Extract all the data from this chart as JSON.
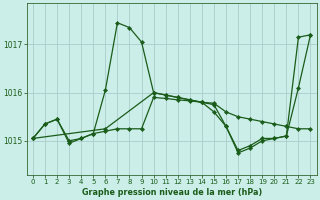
{
  "background_color": "#cceee8",
  "grid_color_major": "#aacccc",
  "grid_color_minor": "#bbdddd",
  "line_color": "#1a5c1a",
  "title": "Graphe pression niveau de la mer (hPa)",
  "xlim": [
    -0.5,
    23.5
  ],
  "ylim": [
    1014.3,
    1017.85
  ],
  "yticks": [
    1015,
    1016,
    1017
  ],
  "xticks": [
    0,
    1,
    2,
    3,
    4,
    5,
    6,
    7,
    8,
    9,
    10,
    11,
    12,
    13,
    14,
    15,
    16,
    17,
    18,
    19,
    20,
    21,
    22,
    23
  ],
  "series": [
    {
      "x": [
        0,
        1,
        2,
        3,
        4,
        5,
        6,
        7,
        8,
        9,
        10,
        11,
        12,
        13,
        14,
        15,
        16,
        17,
        18,
        19,
        20,
        21,
        22,
        23
      ],
      "y": [
        1015.05,
        1015.35,
        1015.45,
        1015.0,
        1015.05,
        1015.15,
        1016.05,
        1017.45,
        1017.35,
        1017.05,
        1016.0,
        1015.95,
        1015.9,
        1015.85,
        1015.8,
        1015.75,
        1015.3,
        1014.8,
        1014.9,
        1015.05,
        1015.05,
        1015.1,
        1017.15,
        1017.2
      ]
    },
    {
      "x": [
        0,
        1,
        2,
        3,
        4,
        5,
        6,
        7,
        8,
        9,
        10,
        11,
        12,
        13,
        14,
        15,
        16,
        17,
        18,
        19,
        20,
        21,
        22,
        23
      ],
      "y": [
        1015.05,
        1015.35,
        1015.45,
        1014.95,
        1015.05,
        1015.15,
        1015.2,
        1015.25,
        1015.25,
        1015.25,
        1015.9,
        1015.88,
        1015.85,
        1015.83,
        1015.8,
        1015.78,
        1015.6,
        1015.5,
        1015.45,
        1015.4,
        1015.35,
        1015.3,
        1015.25,
        1015.25
      ]
    },
    {
      "x": [
        0,
        6,
        10,
        11,
        12,
        13,
        14,
        15,
        16,
        17,
        18,
        19,
        20,
        21,
        22,
        23
      ],
      "y": [
        1015.05,
        1015.25,
        1016.0,
        1015.95,
        1015.9,
        1015.85,
        1015.8,
        1015.6,
        1015.3,
        1014.75,
        1014.85,
        1015.0,
        1015.05,
        1015.1,
        1016.1,
        1017.2
      ]
    }
  ]
}
